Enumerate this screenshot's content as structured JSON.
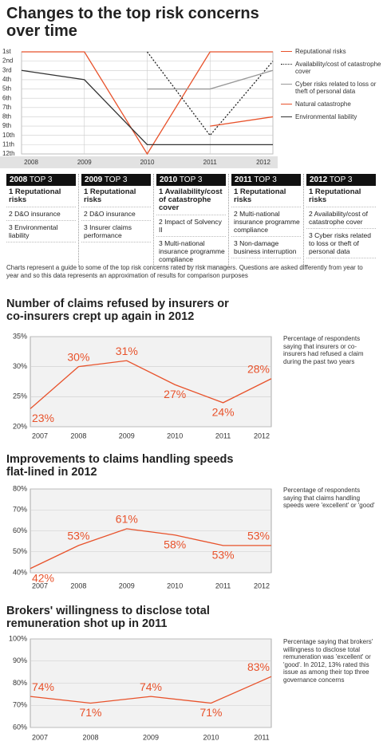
{
  "chart_data": [
    {
      "type": "line",
      "title": "Changes to the top risk concerns over time",
      "categories": [
        "2008",
        "2009",
        "2010",
        "2011",
        "2012"
      ],
      "series": [
        {
          "name": "Reputational risks",
          "color": "#e8522b",
          "line_style": "solid",
          "values": [
            1,
            1,
            12,
            1,
            1
          ]
        },
        {
          "name": "Availability/cost of catastrophe cover",
          "color": "#222222",
          "line_style": "dotted",
          "values": [
            null,
            null,
            1,
            10,
            2
          ]
        },
        {
          "name": "Cyber risks related to loss or theft of personal data",
          "color": "#999999",
          "line_style": "solid",
          "values": [
            null,
            null,
            5,
            5,
            3
          ]
        },
        {
          "name": "Natural catastrophe",
          "color": "#e8522b",
          "line_style": "solid",
          "values": [
            null,
            null,
            null,
            9,
            8
          ]
        },
        {
          "name": "Environmental liability",
          "color": "#333333",
          "line_style": "solid",
          "values": [
            3,
            4,
            11,
            11,
            11
          ]
        }
      ],
      "ylim": [
        12,
        1
      ],
      "yticks": [
        {
          "value": 1,
          "label": "1st"
        },
        {
          "value": 2,
          "label": "2nd"
        },
        {
          "value": 3,
          "label": "3rd"
        },
        {
          "value": 4,
          "label": "4th"
        },
        {
          "value": 5,
          "label": "5th"
        },
        {
          "value": 6,
          "label": "6th"
        },
        {
          "value": 7,
          "label": "7th"
        },
        {
          "value": 8,
          "label": "8th"
        },
        {
          "value": 9,
          "label": "9th"
        },
        {
          "value": 10,
          "label": "10th"
        },
        {
          "value": 11,
          "label": "11th"
        },
        {
          "value": 12,
          "label": "12th"
        }
      ],
      "grid": true,
      "legend": "right"
    },
    {
      "type": "line",
      "title": "Number of claims refused by insurers or co-insurers crept up again in 2012",
      "categories": [
        "2007",
        "2008",
        "2009",
        "2010",
        "2011",
        "2012"
      ],
      "values": [
        23,
        30,
        31,
        27,
        24,
        28
      ],
      "value_labels": [
        "23%",
        "30%",
        "31%",
        "27%",
        "24%",
        "28%"
      ],
      "color": "#e8522b",
      "ylim": [
        20,
        35
      ],
      "yticks": [
        {
          "value": 20,
          "label": "20%"
        },
        {
          "value": 25,
          "label": "25%"
        },
        {
          "value": 30,
          "label": "30%"
        },
        {
          "value": 35,
          "label": "35%"
        }
      ],
      "grid": true,
      "note": "Percentage of respondents saying that insurers or co-insurers had refused a claim during the past two years"
    },
    {
      "type": "line",
      "title": "Improvements to claims handling speeds flat-lined in 2012",
      "categories": [
        "2007",
        "2008",
        "2009",
        "2010",
        "2011",
        "2012"
      ],
      "values": [
        42,
        53,
        61,
        58,
        53,
        53
      ],
      "value_labels": [
        "42%",
        "53%",
        "61%",
        "58%",
        "53%",
        "53%"
      ],
      "color": "#e8522b",
      "ylim": [
        40,
        80
      ],
      "yticks": [
        {
          "value": 40,
          "label": "40%"
        },
        {
          "value": 50,
          "label": "50%"
        },
        {
          "value": 60,
          "label": "60%"
        },
        {
          "value": 70,
          "label": "70%"
        },
        {
          "value": 80,
          "label": "80%"
        }
      ],
      "grid": true,
      "note": "Percentage of respondents saying that claims handling speeds were 'excellent' or 'good'"
    },
    {
      "type": "line",
      "title": "Brokers' willingness to disclose total remuneration shot up in 2011",
      "categories": [
        "2007",
        "2008",
        "2009",
        "2010",
        "2011"
      ],
      "values": [
        74,
        71,
        74,
        71,
        83
      ],
      "value_labels": [
        "74%",
        "71%",
        "74%",
        "71%",
        "83%"
      ],
      "color": "#e8522b",
      "ylim": [
        60,
        100
      ],
      "yticks": [
        {
          "value": 60,
          "label": "60%"
        },
        {
          "value": 70,
          "label": "70%"
        },
        {
          "value": 80,
          "label": "80%"
        },
        {
          "value": 90,
          "label": "90%"
        },
        {
          "value": 100,
          "label": "100%"
        }
      ],
      "grid": true,
      "note": "Percentage saying that brokers' willingness to disclose total remuneration was 'excellent' or 'good'. In 2012, 13% rated this issue as among their top three governance concerns"
    }
  ],
  "top3": {
    "columns": [
      {
        "year": "2008",
        "header": "TOP 3",
        "items": [
          "1 Reputational risks",
          "2 D&O insurance",
          "3 Environmental liability"
        ]
      },
      {
        "year": "2009",
        "header": "TOP 3",
        "items": [
          "1 Reputational risks",
          "2 D&O insurance",
          "3 Insurer claims performance"
        ]
      },
      {
        "year": "2010",
        "header": "TOP 3",
        "items": [
          "1 Availability/cost of catastrophe cover",
          "2 Impact of Solvency II",
          "3 Multi-national insurance programme compliance"
        ]
      },
      {
        "year": "2011",
        "header": "TOP 3",
        "items": [
          "1 Reputational risks",
          "2 Multi-national insurance programme compliance",
          "3 Non-damage business interruption"
        ]
      },
      {
        "year": "2012",
        "header": "TOP 3",
        "items": [
          "1 Reputational risks",
          "2 Availability/cost of catastrophe cover",
          "3 Cyber risks related to loss or theft of personal data"
        ]
      }
    ]
  },
  "note": "Charts represent a guide to some of the top risk concerns rated by risk managers. Questions are asked differently from year to year and so this data represents an approximation of results for comparison purposes"
}
